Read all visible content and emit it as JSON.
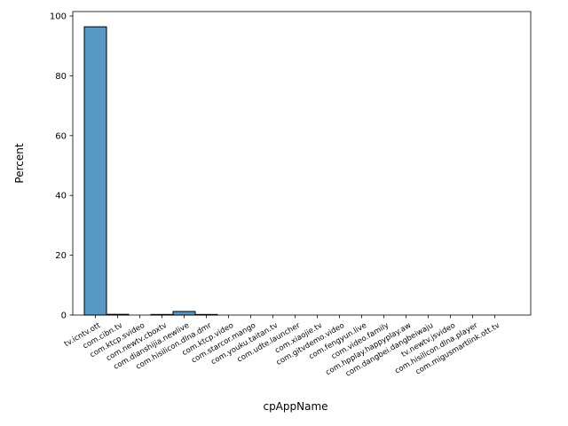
{
  "chart_data": {
    "type": "bar",
    "title": "",
    "xlabel": "cpAppName",
    "ylabel": "Percent",
    "ylim": [
      0,
      101.5
    ],
    "yticks": [
      0,
      20,
      40,
      60,
      80,
      100
    ],
    "bar_color": "#5799c6",
    "edge_color": "#000000",
    "grid": false,
    "categories": [
      "tv.icntv.ott",
      "com.cibn.tv",
      "com.ktcp.svideo",
      "com.newtv.cboxtv",
      "com.dianshijia.newlive",
      "com.hisilicon.dlna.dmr",
      "com.ktcp.video",
      "com.starcor.mango",
      "com.youku.taitan.tv",
      "com.udte.launcher",
      "com.xiaojie.tv",
      "com.gitvdemo.video",
      "com.fengyun.live",
      "com.video.family",
      "com.hpplay.happyplay.aw",
      "com.dangbei.dangbeiwaju",
      "tv.newtv.jsvideo",
      "com.hisilicon.dlna.player",
      "com.migusmartlink.ott.tv"
    ],
    "values": [
      96.4,
      0.25,
      0.0,
      0.2,
      1.2,
      0.2,
      0.0,
      0.0,
      0.0,
      0.0,
      0.0,
      0.0,
      0.0,
      0.0,
      0.0,
      0.0,
      0.0,
      0.0,
      0.0
    ]
  }
}
